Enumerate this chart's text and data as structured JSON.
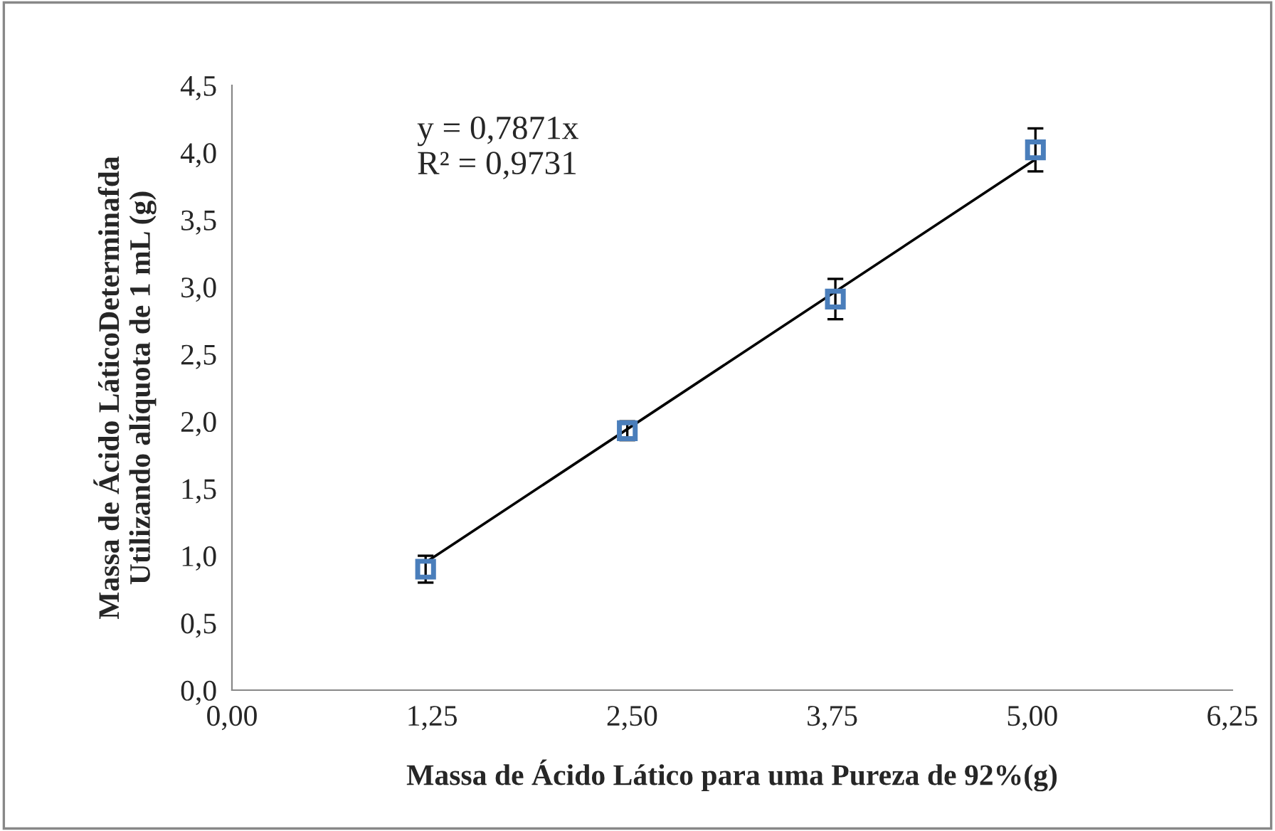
{
  "chart_data": {
    "type": "scatter",
    "xlabel": "Massa de Ácido Lático para uma Pureza de 92%(g)",
    "ylabel": "Massa de Ácido LáticoDeterminafda\nUtilizando alíquota de 1 mL (g)",
    "series": [
      {
        "color": "#4a7ebb",
        "x": [
          1.21,
          2.47,
          3.77,
          5.02
        ],
        "values": [
          0.9,
          1.93,
          2.91,
          4.02
        ],
        "errors": [
          0.1,
          0.07,
          0.15,
          0.16
        ],
        "marker": "square"
      },
      {
        "type": "line",
        "color": "#000000",
        "x": [
          1.21,
          5.02
        ],
        "values": [
          0.95,
          3.95
        ]
      }
    ],
    "annotations": [
      "y = 0,7871x\nR² = 0,9731"
    ],
    "xlim": [
      0,
      6.25
    ],
    "ylim": [
      0,
      4.5
    ],
    "xticks": [
      {
        "value": 0,
        "label": "0,00"
      },
      {
        "value": 1.25,
        "label": "1,25"
      },
      {
        "value": 2.5,
        "label": "2,50"
      },
      {
        "value": 3.75,
        "label": "3,75"
      },
      {
        "value": 5.0,
        "label": "5,00"
      },
      {
        "value": 6.25,
        "label": "6,25"
      }
    ],
    "yticks": [
      {
        "value": 0,
        "label": "0,0"
      },
      {
        "value": 0.5,
        "label": "0,5"
      },
      {
        "value": 1.0,
        "label": "1,0"
      },
      {
        "value": 1.5,
        "label": "1,5"
      },
      {
        "value": 2.0,
        "label": "2,0"
      },
      {
        "value": 2.5,
        "label": "2,5"
      },
      {
        "value": 3.0,
        "label": "3,0"
      },
      {
        "value": 3.5,
        "label": "3,5"
      },
      {
        "value": 4.0,
        "label": "4,0"
      },
      {
        "value": 4.5,
        "label": "4,5"
      }
    ],
    "grid": false,
    "legend": false
  }
}
